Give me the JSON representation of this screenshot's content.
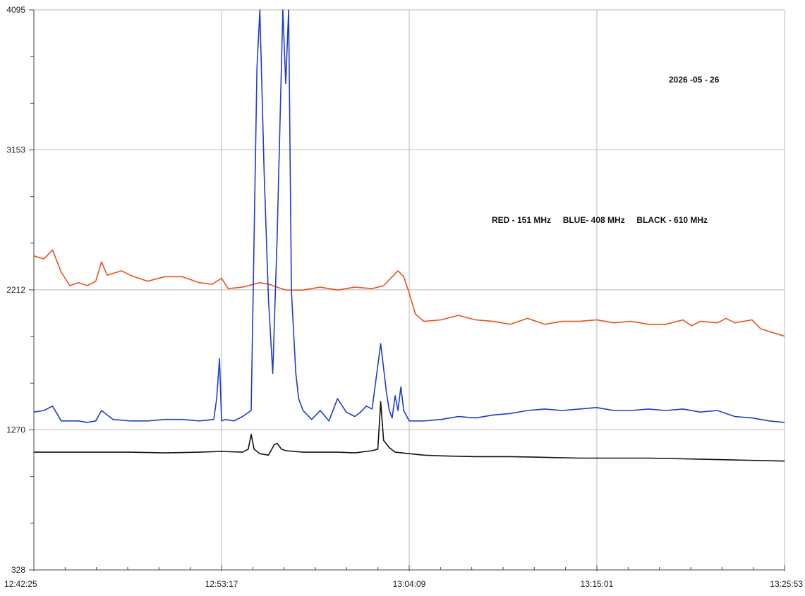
{
  "chart_data": {
    "type": "line",
    "title": "",
    "xlabel": "",
    "ylabel": "",
    "date_label": "2026 -05 - 26",
    "legend_text": "RED - 151 MHz     BLUE- 408 MHz     BLACK - 610 MHz",
    "ylim": [
      328,
      4095
    ],
    "xlim": [
      "12:42:25",
      "13:25:53"
    ],
    "y_ticks": [
      328,
      1270,
      2212,
      3153,
      4095
    ],
    "x_ticks": [
      "12:42:25",
      "12:53:17",
      "13:04:09",
      "13:15:01",
      "13:25:53"
    ],
    "grid": true,
    "series": [
      {
        "color": "#e8501e",
        "x": [
          "12:42:25",
          "12:43:00",
          "12:43:30",
          "12:44:00",
          "12:44:30",
          "12:45:00",
          "12:45:30",
          "12:46:00",
          "12:46:20",
          "12:46:40",
          "12:47:30",
          "12:48:00",
          "12:48:30",
          "12:49:00",
          "12:50:00",
          "12:51:00",
          "12:52:00",
          "12:52:45",
          "12:53:17",
          "12:53:40",
          "12:54:30",
          "12:55:30",
          "12:56:00",
          "12:56:30",
          "12:57:00",
          "12:58:00",
          "12:59:00",
          "13:00:00",
          "13:01:00",
          "13:02:00",
          "13:02:40",
          "13:03:00",
          "13:03:30",
          "13:03:50",
          "13:04:09",
          "13:04:30",
          "13:05:00",
          "13:06:00",
          "13:07:00",
          "13:08:00",
          "13:09:00",
          "13:10:00",
          "13:11:00",
          "13:12:00",
          "13:13:00",
          "13:14:00",
          "13:15:00",
          "13:16:00",
          "13:17:00",
          "13:18:00",
          "13:19:00",
          "13:20:00",
          "13:20:30",
          "13:21:00",
          "13:22:00",
          "13:22:30",
          "13:23:00",
          "13:24:00",
          "13:24:30",
          "13:25:53"
        ],
        "y": [
          2440,
          2420,
          2480,
          2330,
          2240,
          2260,
          2240,
          2270,
          2400,
          2310,
          2340,
          2310,
          2290,
          2270,
          2300,
          2300,
          2260,
          2250,
          2290,
          2220,
          2230,
          2260,
          2250,
          2230,
          2210,
          2210,
          2230,
          2210,
          2230,
          2220,
          2240,
          2280,
          2340,
          2300,
          2190,
          2050,
          2000,
          2010,
          2040,
          2010,
          2000,
          1980,
          2020,
          1980,
          2000,
          2000,
          2010,
          1990,
          2000,
          1980,
          1980,
          2010,
          1970,
          2000,
          1990,
          2020,
          1990,
          2010,
          1950,
          1900
        ]
      },
      {
        "color": "#1e3cc8",
        "x": [
          "12:42:25",
          "12:43:00",
          "12:43:30",
          "12:44:00",
          "12:44:30",
          "12:45:00",
          "12:45:30",
          "12:46:00",
          "12:46:20",
          "12:47:00",
          "12:48:00",
          "12:49:00",
          "12:50:00",
          "12:51:00",
          "12:52:00",
          "12:52:50",
          "12:53:00",
          "12:53:10",
          "12:53:17",
          "12:53:30",
          "12:54:00",
          "12:54:30",
          "12:55:00",
          "12:55:20",
          "12:55:30",
          "12:55:45",
          "12:56:00",
          "12:56:15",
          "12:56:30",
          "12:56:50",
          "12:57:00",
          "12:57:10",
          "12:57:20",
          "12:57:35",
          "12:57:45",
          "12:58:00",
          "12:58:30",
          "12:59:00",
          "12:59:30",
          "13:00:00",
          "13:00:30",
          "13:01:00",
          "13:01:20",
          "13:01:40",
          "13:02:00",
          "13:02:30",
          "13:02:50",
          "13:03:00",
          "13:03:10",
          "13:03:20",
          "13:03:30",
          "13:03:40",
          "13:03:50",
          "13:04:09",
          "13:05:00",
          "13:06:00",
          "13:07:00",
          "13:08:00",
          "13:09:00",
          "13:10:00",
          "13:11:00",
          "13:12:00",
          "13:13:00",
          "13:14:00",
          "13:15:00",
          "13:16:00",
          "13:17:00",
          "13:18:00",
          "13:19:00",
          "13:20:00",
          "13:21:00",
          "13:22:00",
          "13:23:00",
          "13:24:00",
          "13:25:00",
          "13:25:53"
        ],
        "y": [
          1390,
          1400,
          1430,
          1330,
          1330,
          1330,
          1320,
          1330,
          1400,
          1340,
          1330,
          1330,
          1340,
          1340,
          1330,
          1340,
          1480,
          1750,
          1330,
          1340,
          1330,
          1360,
          1400,
          3700,
          4095,
          3000,
          2150,
          1650,
          2550,
          4095,
          3600,
          4095,
          2200,
          1650,
          1480,
          1400,
          1340,
          1400,
          1330,
          1480,
          1390,
          1360,
          1390,
          1430,
          1410,
          1850,
          1520,
          1400,
          1350,
          1500,
          1400,
          1560,
          1400,
          1330,
          1330,
          1340,
          1360,
          1350,
          1370,
          1380,
          1400,
          1410,
          1400,
          1410,
          1420,
          1400,
          1400,
          1410,
          1400,
          1410,
          1390,
          1400,
          1360,
          1350,
          1330,
          1320
        ]
      },
      {
        "color": "#111111",
        "x": [
          "12:42:25",
          "12:44:00",
          "12:46:00",
          "12:48:00",
          "12:50:00",
          "12:52:00",
          "12:53:17",
          "12:54:30",
          "12:54:50",
          "12:55:00",
          "12:55:10",
          "12:55:30",
          "12:56:00",
          "12:56:20",
          "12:56:30",
          "12:56:45",
          "12:57:00",
          "12:58:00",
          "12:59:00",
          "13:00:00",
          "13:01:00",
          "13:02:00",
          "13:02:20",
          "13:02:30",
          "13:02:40",
          "13:03:00",
          "13:03:20",
          "13:04:09",
          "13:05:00",
          "13:06:00",
          "13:08:00",
          "13:10:00",
          "13:12:00",
          "13:14:00",
          "13:16:00",
          "13:18:00",
          "13:20:00",
          "13:22:00",
          "13:24:00",
          "13:25:53"
        ],
        "y": [
          1120,
          1120,
          1120,
          1120,
          1115,
          1120,
          1125,
          1120,
          1140,
          1240,
          1140,
          1110,
          1100,
          1170,
          1180,
          1140,
          1130,
          1120,
          1120,
          1120,
          1115,
          1130,
          1140,
          1460,
          1200,
          1150,
          1120,
          1110,
          1100,
          1095,
          1090,
          1090,
          1085,
          1080,
          1080,
          1080,
          1075,
          1070,
          1065,
          1060
        ]
      }
    ]
  }
}
